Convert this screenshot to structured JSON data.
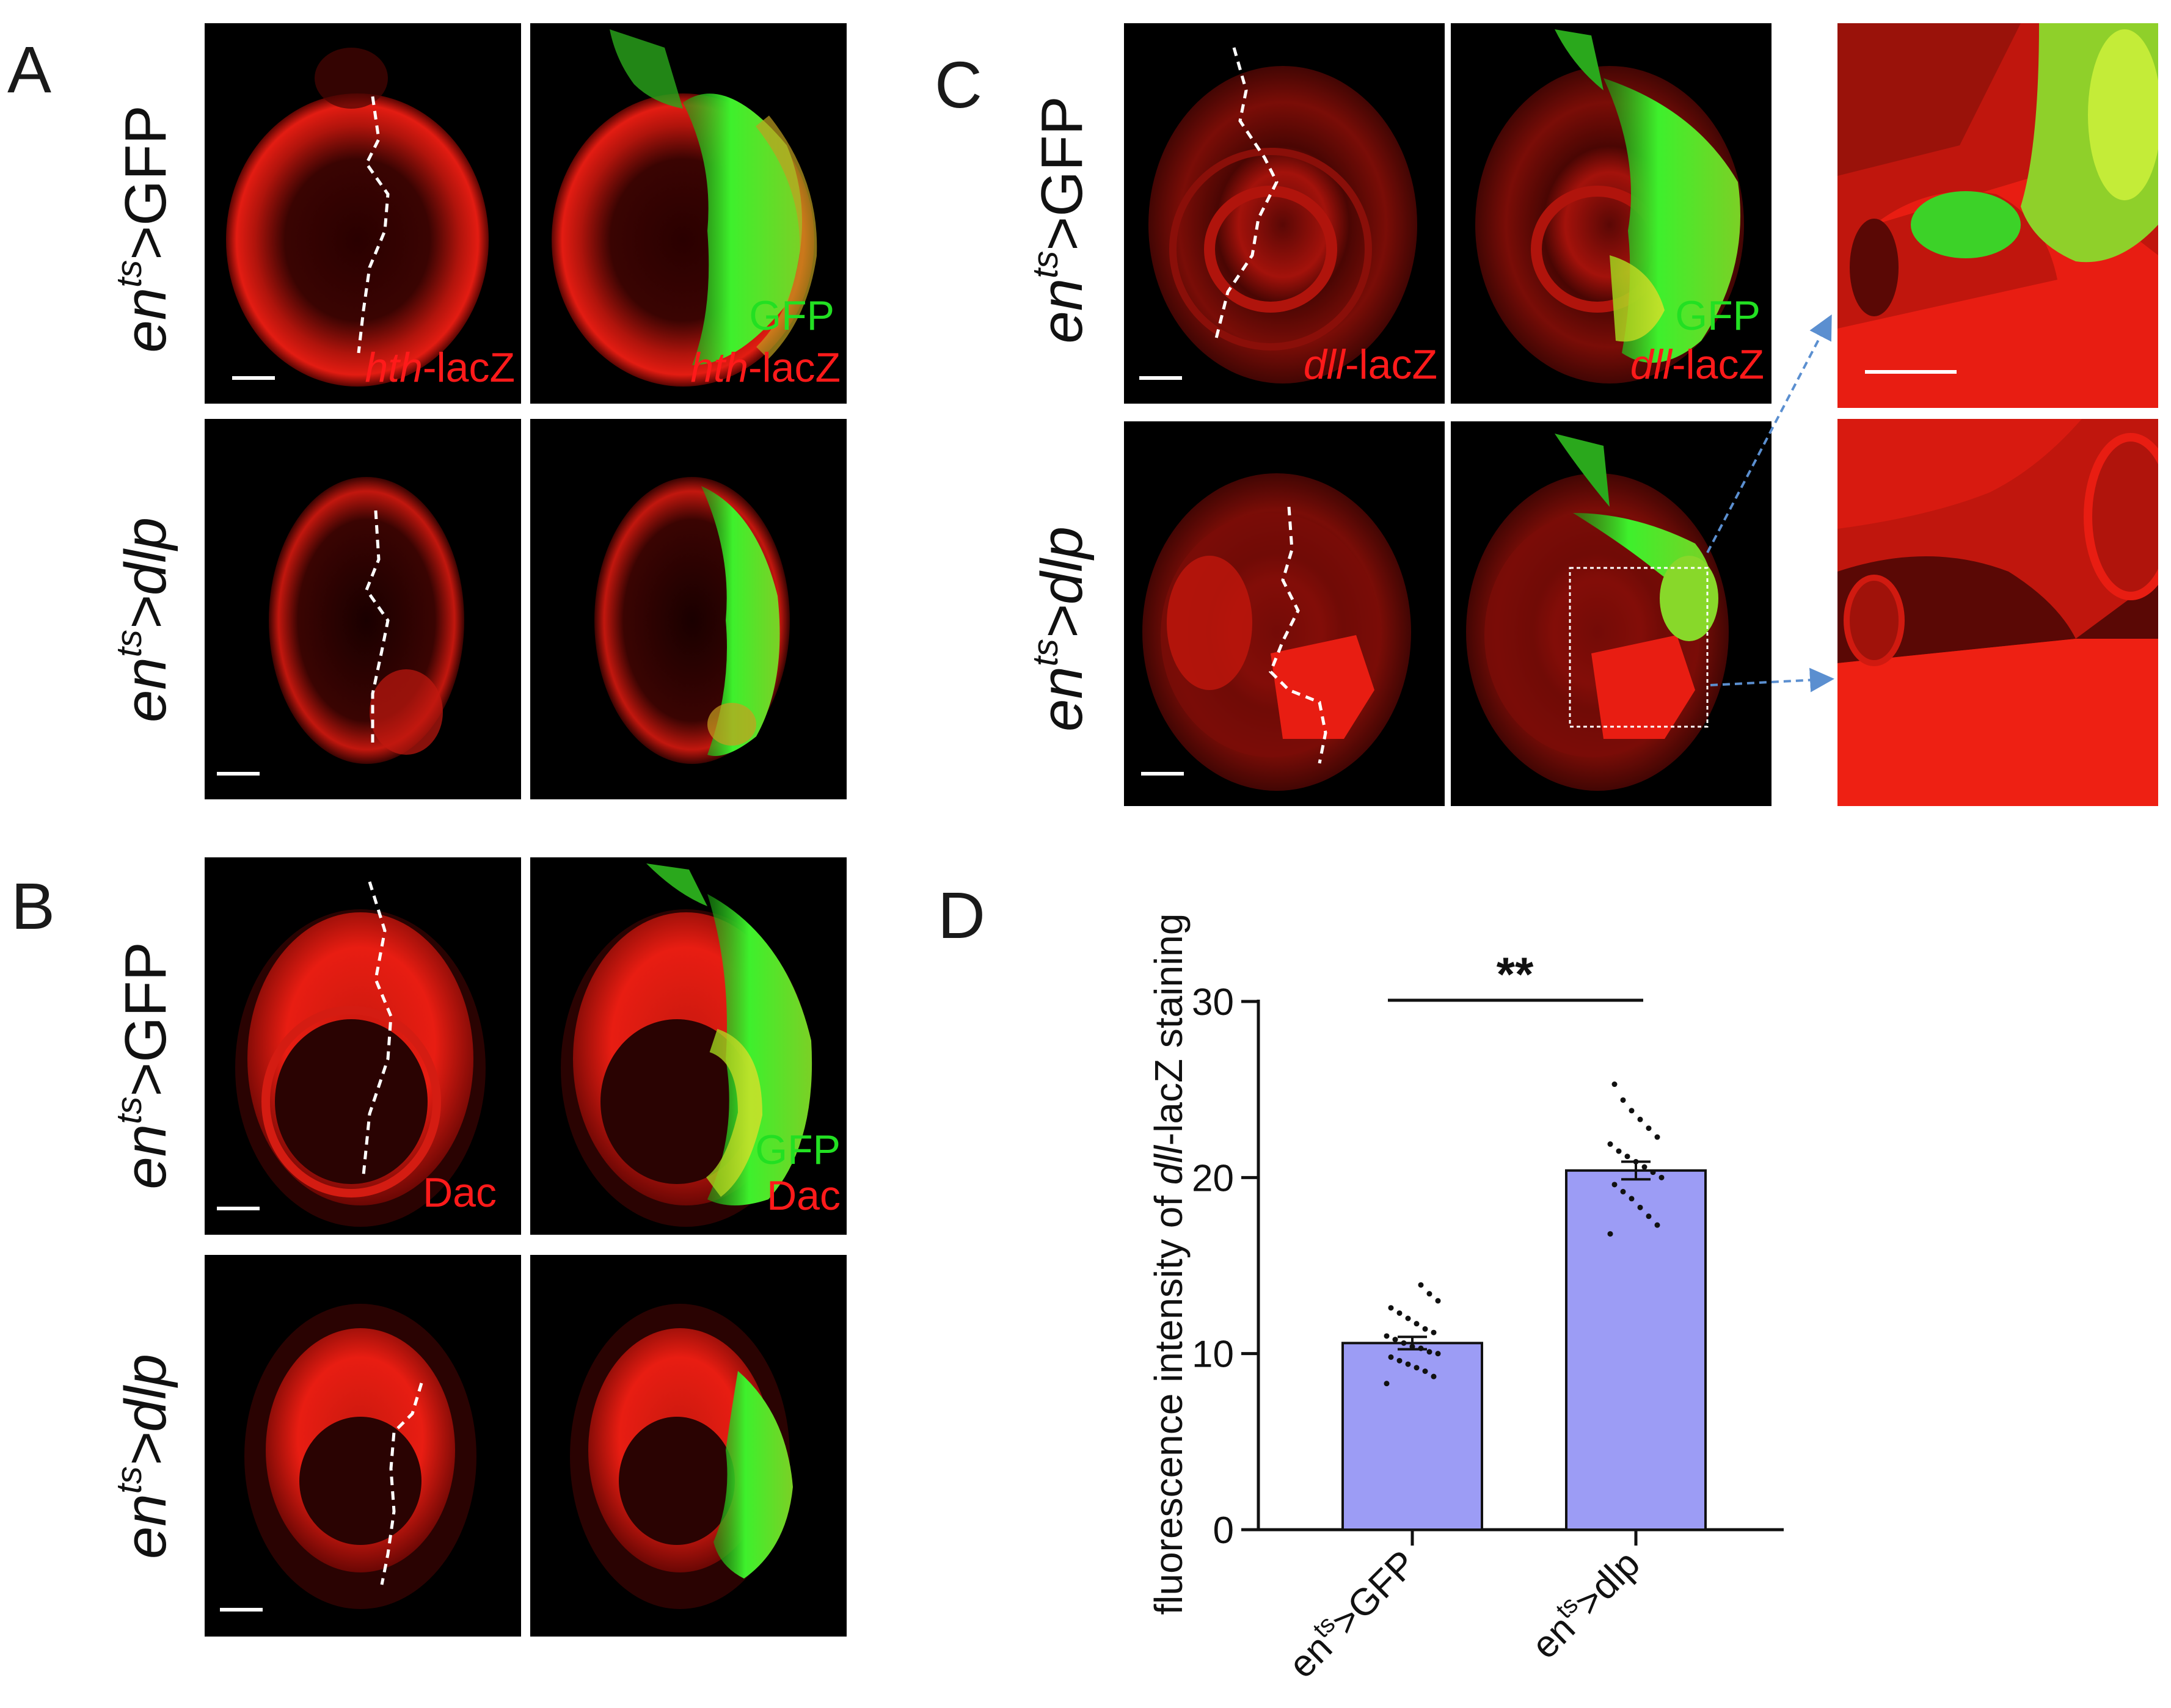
{
  "panels": {
    "A": {
      "letter": "A",
      "rows": [
        {
          "genotype_prefix": "en",
          "genotype_sup": "ts",
          "genotype_suffix": ">GFP",
          "suffix_italic": false
        },
        {
          "genotype_prefix": "en",
          "genotype_sup": "ts",
          "genotype_suffix": ">dlp",
          "suffix_italic": true
        }
      ],
      "merge_green_label": "GFP",
      "red_gene": "hth",
      "red_suffix": "-lacZ"
    },
    "B": {
      "letter": "B",
      "rows": [
        {
          "genotype_prefix": "en",
          "genotype_sup": "ts",
          "genotype_suffix": ">GFP",
          "suffix_italic": false
        },
        {
          "genotype_prefix": "en",
          "genotype_sup": "ts",
          "genotype_suffix": ">dlp",
          "suffix_italic": true
        }
      ],
      "merge_green_label": "GFP",
      "red_label": "Dac"
    },
    "C": {
      "letter": "C",
      "rows": [
        {
          "genotype_prefix": "en",
          "genotype_sup": "ts",
          "genotype_suffix": ">GFP",
          "suffix_italic": false
        },
        {
          "genotype_prefix": "en",
          "genotype_sup": "ts",
          "genotype_suffix": ">dlp",
          "suffix_italic": true
        }
      ],
      "merge_green_label": "GFP",
      "red_gene": "dll",
      "red_suffix": "-lacZ"
    },
    "D": {
      "letter": "D"
    }
  },
  "colors": {
    "red_channel": "#e81a12",
    "green_channel": "#39e82a",
    "bar_fill": "#9c9cf5",
    "arrow": "#5b8fd0"
  },
  "chart_data": {
    "type": "bar",
    "categories": [
      "en^ts>GFP",
      "en^ts>dlp"
    ],
    "category_labels": [
      {
        "prefix": "en",
        "sup": "ts",
        "suffix": ">GFP"
      },
      {
        "prefix": "en",
        "sup": "ts",
        "suffix": ">dlp"
      }
    ],
    "values": [
      10.6,
      20.4
    ],
    "sem": [
      0.35,
      0.5
    ],
    "points": [
      [
        8.3,
        8.7,
        9.0,
        9.2,
        9.4,
        9.6,
        9.8,
        10.0,
        10.1,
        10.3,
        10.4,
        10.6,
        10.8,
        11.0,
        11.2,
        11.4,
        11.7,
        12.0,
        12.3,
        12.6,
        13.0,
        13.4,
        13.9
      ],
      [
        16.8,
        17.3,
        17.8,
        18.3,
        18.8,
        19.2,
        19.6,
        20.0,
        20.3,
        20.6,
        20.9,
        21.2,
        21.5,
        21.9,
        22.3,
        22.8,
        23.3,
        23.8,
        24.4,
        25.3
      ]
    ],
    "ylabel_prefix": "fluorescence intensity of ",
    "ylabel_gene": "dll",
    "ylabel_suffix": "-lacZ staining",
    "ylim": [
      0,
      30
    ],
    "yticks": [
      0,
      10,
      20,
      30
    ],
    "significance": "**"
  }
}
